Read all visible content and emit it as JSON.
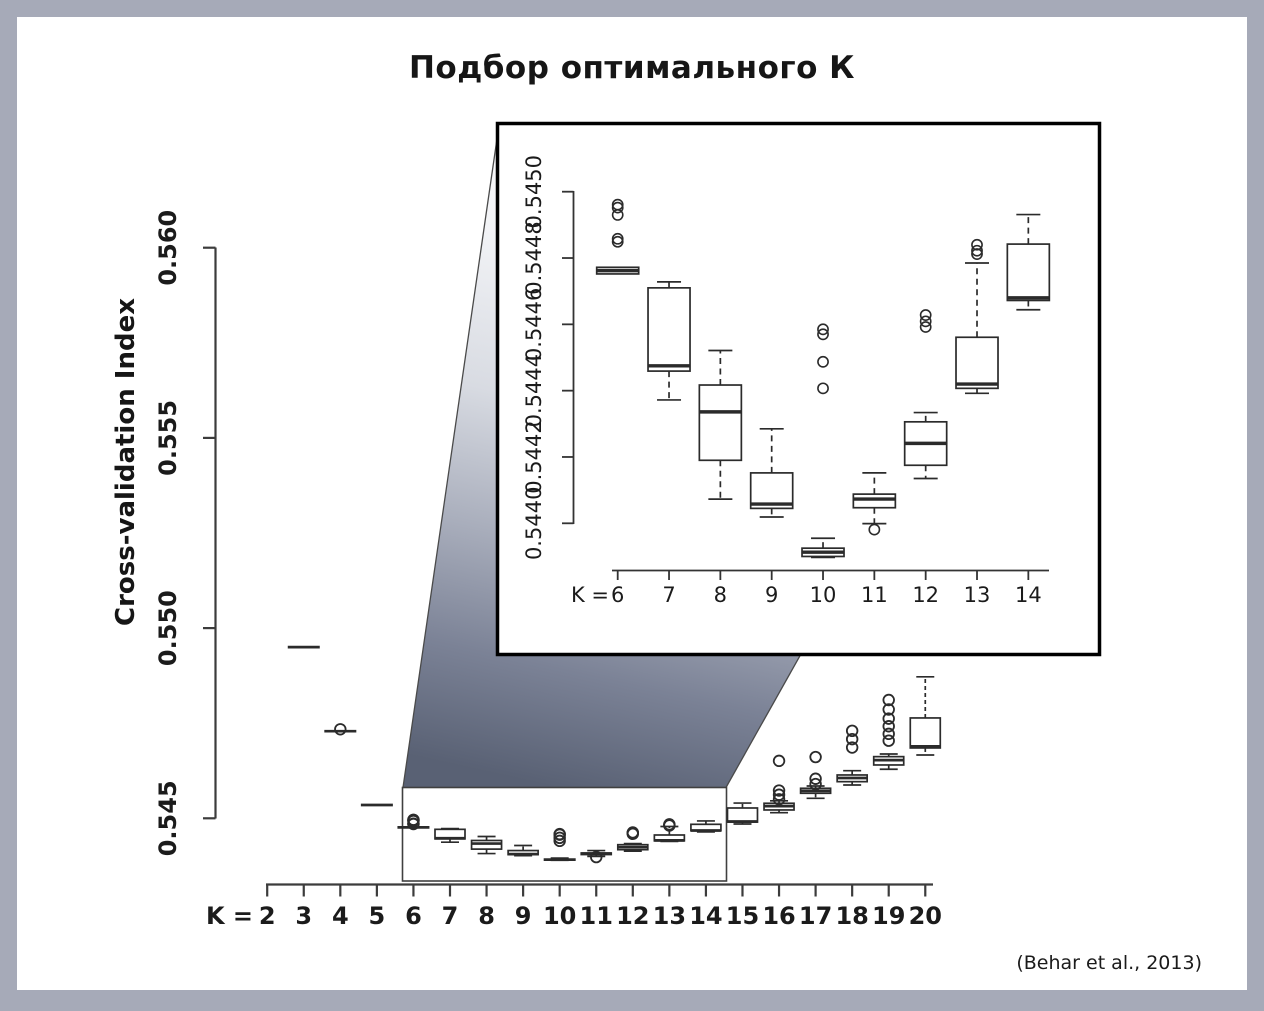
{
  "title": "Подбор оптимального К",
  "attribution": "(Behar et al., 2013)",
  "frame_color": "#a6aab8",
  "cone_colors": {
    "top": "#ffffff",
    "mid": "#d8dbe2",
    "dark": "#596174"
  },
  "chart_data": [
    {
      "type": "boxplot",
      "name": "main",
      "title": "Подбор оптимального К",
      "xlabel": "K =",
      "ylabel": "Cross-validation Index",
      "x_categories": [
        2,
        3,
        4,
        5,
        6,
        7,
        8,
        9,
        10,
        11,
        12,
        13,
        14,
        15,
        16,
        17,
        18,
        19,
        20
      ],
      "x_tick_labels": [
        "2",
        "3",
        "4",
        "5",
        "6",
        "7",
        "8",
        "9",
        "10",
        "11",
        "12",
        "13",
        "14",
        "15",
        "16",
        "17",
        "18",
        "19",
        "20"
      ],
      "y_ticks": [
        0.545,
        0.55,
        0.555,
        0.56
      ],
      "y_tick_labels": [
        "0.545",
        "0.550",
        "0.555",
        "0.560"
      ],
      "ylim": [
        0.5433,
        0.5602
      ],
      "grid": false,
      "legend": "none",
      "zoom_region_categories": [
        6,
        14
      ],
      "series": [
        {
          "k": 3,
          "median": 0.5495
        },
        {
          "k": 4,
          "median": 0.54729,
          "outliers": [
            0.54734
          ]
        },
        {
          "k": 5,
          "median": 0.54535
        },
        {
          "k": 6,
          "median": 0.544762,
          "q1": 0.544752,
          "q3": 0.544772,
          "whislo": 0.544752,
          "whishi": 0.544772,
          "outliers": [
            0.544849,
            0.544858,
            0.54493,
            0.544952,
            0.544961
          ]
        },
        {
          "k": 7,
          "median": 0.544475,
          "q1": 0.544459,
          "q3": 0.54471,
          "whislo": 0.544372,
          "whishi": 0.544728
        },
        {
          "k": 8,
          "median": 0.544336,
          "q1": 0.54419,
          "q3": 0.544417,
          "whislo": 0.544073,
          "whishi": 0.544521
        },
        {
          "k": 9,
          "median": 0.544058,
          "q1": 0.544045,
          "q3": 0.544152,
          "whislo": 0.544019,
          "whishi": 0.544285
        },
        {
          "k": 10,
          "median": 0.543913,
          "q1": 0.5439,
          "q3": 0.543925,
          "whislo": 0.543897,
          "whishi": 0.543955,
          "outliers": [
            0.544407,
            0.544487,
            0.54457,
            0.544585
          ]
        },
        {
          "k": 11,
          "median": 0.544073,
          "q1": 0.544047,
          "q3": 0.544088,
          "whislo": 0.543999,
          "whishi": 0.544152,
          "outliers": [
            0.543981
          ]
        },
        {
          "k": 12,
          "median": 0.544241,
          "q1": 0.544175,
          "q3": 0.544306,
          "whislo": 0.544135,
          "whishi": 0.544334,
          "outliers": [
            0.544592,
            0.544609,
            0.544628
          ]
        },
        {
          "k": 13,
          "median": 0.54442,
          "q1": 0.544407,
          "q3": 0.544561,
          "whislo": 0.544392,
          "whishi": 0.544785,
          "outliers": [
            0.544812,
            0.544822,
            0.54484
          ]
        },
        {
          "k": 14,
          "median": 0.54468,
          "q1": 0.544672,
          "q3": 0.544842,
          "whislo": 0.544644,
          "whishi": 0.544931
        },
        {
          "k": 15,
          "median": 0.544915,
          "q1": 0.5449,
          "q3": 0.545271,
          "whislo": 0.54485,
          "whishi": 0.5454
        },
        {
          "k": 16,
          "median": 0.54532,
          "q1": 0.545219,
          "q3": 0.545395,
          "whislo": 0.545147,
          "whishi": 0.54546,
          "outliers": [
            0.5455,
            0.54562,
            0.54573,
            0.54651
          ]
        },
        {
          "k": 17,
          "median": 0.54572,
          "q1": 0.545658,
          "q3": 0.545789,
          "whislo": 0.545526,
          "whishi": 0.54585,
          "outliers": [
            0.5459,
            0.54604,
            0.54661
          ]
        },
        {
          "k": 18,
          "median": 0.54606,
          "q1": 0.545963,
          "q3": 0.546139,
          "whislo": 0.545876,
          "whishi": 0.546252,
          "outliers": [
            0.54686,
            0.54708,
            0.5473
          ]
        },
        {
          "k": 19,
          "median": 0.54653,
          "q1": 0.546402,
          "q3": 0.546621,
          "whislo": 0.546289,
          "whishi": 0.546691,
          "outliers": [
            0.54704,
            0.54722,
            0.54742,
            0.54762,
            0.54786,
            0.54811
          ]
        },
        {
          "k": 20,
          "median": 0.546891,
          "q1": 0.546849,
          "q3": 0.547638,
          "whislo": 0.546665,
          "whishi": 0.54872
        }
      ]
    },
    {
      "type": "boxplot",
      "name": "inset-zoom",
      "xlabel": "K =",
      "x_categories": [
        6,
        7,
        8,
        9,
        10,
        11,
        12,
        13,
        14
      ],
      "x_tick_labels": [
        "6",
        "7",
        "8",
        "9",
        "10",
        "11",
        "12",
        "13",
        "14"
      ],
      "y_ticks": [
        0.544,
        0.5442,
        0.5444,
        0.5446,
        0.5448,
        0.545
      ],
      "y_tick_labels": [
        "0.5440",
        "0.5442",
        "0.5444",
        "0.5446",
        "0.5448",
        "0.5450"
      ],
      "ylim": [
        0.54385,
        0.54505
      ],
      "grid": false,
      "legend": "none",
      "series": [
        {
          "k": 6,
          "median": 0.544762,
          "q1": 0.544752,
          "q3": 0.544772,
          "whislo": 0.544752,
          "whishi": 0.544772,
          "outliers": [
            0.544849,
            0.544858,
            0.54493,
            0.544952,
            0.544961
          ]
        },
        {
          "k": 7,
          "median": 0.544475,
          "q1": 0.544459,
          "q3": 0.54471,
          "whislo": 0.544372,
          "whishi": 0.544728
        },
        {
          "k": 8,
          "median": 0.544336,
          "q1": 0.54419,
          "q3": 0.544417,
          "whislo": 0.544073,
          "whishi": 0.544521
        },
        {
          "k": 9,
          "median": 0.544058,
          "q1": 0.544045,
          "q3": 0.544152,
          "whislo": 0.544019,
          "whishi": 0.544285
        },
        {
          "k": 10,
          "median": 0.543913,
          "q1": 0.5439,
          "q3": 0.543925,
          "whislo": 0.543897,
          "whishi": 0.543955,
          "outliers": [
            0.544407,
            0.544487,
            0.54457,
            0.544585
          ]
        },
        {
          "k": 11,
          "median": 0.544073,
          "q1": 0.544047,
          "q3": 0.544088,
          "whislo": 0.543999,
          "whishi": 0.544152,
          "outliers": [
            0.543981
          ]
        },
        {
          "k": 12,
          "median": 0.544241,
          "q1": 0.544175,
          "q3": 0.544306,
          "whislo": 0.544135,
          "whishi": 0.544334,
          "outliers": [
            0.544592,
            0.544609,
            0.544628
          ]
        },
        {
          "k": 13,
          "median": 0.54442,
          "q1": 0.544407,
          "q3": 0.544561,
          "whislo": 0.544392,
          "whishi": 0.544785,
          "outliers": [
            0.544812,
            0.544822,
            0.54484
          ]
        },
        {
          "k": 14,
          "median": 0.54468,
          "q1": 0.544672,
          "q3": 0.544842,
          "whislo": 0.544644,
          "whishi": 0.544931
        }
      ]
    }
  ]
}
